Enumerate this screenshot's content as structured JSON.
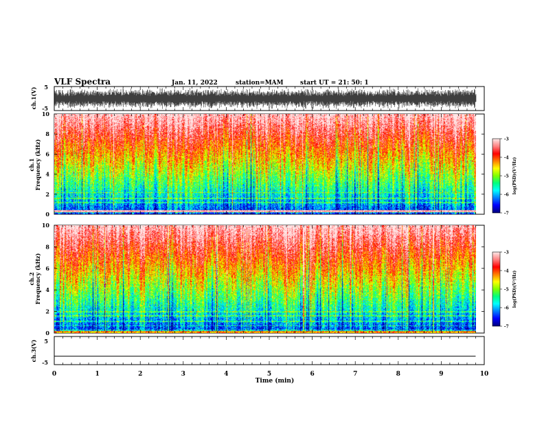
{
  "header": {
    "title": "VLF Spectra",
    "date": "Jan. 11, 2022",
    "station": "station=MAM",
    "start": "start UT =  21: 50: 1"
  },
  "chart_data": [
    {
      "type": "line",
      "name": "ch1-waveform",
      "ylabel": "ch.1(V)",
      "xlim": [
        0,
        10
      ],
      "ylim": [
        -5,
        5
      ],
      "y_ticks": [
        "5",
        "-5"
      ],
      "description": "dense broadband noise filling most of the range"
    },
    {
      "type": "heatmap",
      "name": "ch1-spectrogram",
      "ylabel_line1": "ch.1",
      "ylabel_line2": "Frequency (kHz)",
      "xlim": [
        0,
        9.8
      ],
      "ylim": [
        0,
        10
      ],
      "y_ticks": [
        "0",
        "2",
        "4",
        "6",
        "8",
        "10"
      ],
      "colorbar": {
        "label": "log(PSD)(V²/Hz)",
        "range": [
          -7,
          -3
        ],
        "ticks": [
          "-3",
          "-4",
          "-5",
          "-6",
          "-7"
        ],
        "colormap": [
          "#000080",
          "#0000ff",
          "#0080ff",
          "#00ffff",
          "#00ff80",
          "#80ff00",
          "#ffff00",
          "#ff8000",
          "#ff0000",
          "#ff8080",
          "#ffe6e6"
        ]
      }
    },
    {
      "type": "heatmap",
      "name": "ch2-spectrogram",
      "ylabel_line1": "ch.2",
      "ylabel_line2": "Frequency (kHz)",
      "xlim": [
        0,
        9.8
      ],
      "ylim": [
        0,
        10
      ],
      "y_ticks": [
        "0",
        "2",
        "4",
        "6",
        "8",
        "10"
      ],
      "colorbar": {
        "label": "log(PSD)(V²/Hz)",
        "range": [
          -7,
          -3
        ],
        "ticks": [
          "-3",
          "-4",
          "-5",
          "-6",
          "-7"
        ]
      }
    },
    {
      "type": "line",
      "name": "ch3-waveform",
      "ylabel": "ch.3(V)",
      "xlim": [
        0,
        10
      ],
      "ylim": [
        -5,
        5
      ],
      "y_ticks": [
        "5",
        "-5"
      ],
      "description": "flat line near -2 V",
      "values": {
        "x": [
          0,
          9.8
        ],
        "y": [
          -2,
          -2
        ]
      }
    }
  ],
  "x_axis": {
    "label": "Time (min)",
    "ticks": [
      "0",
      "1",
      "2",
      "3",
      "4",
      "5",
      "6",
      "7",
      "8",
      "9",
      "10"
    ]
  }
}
